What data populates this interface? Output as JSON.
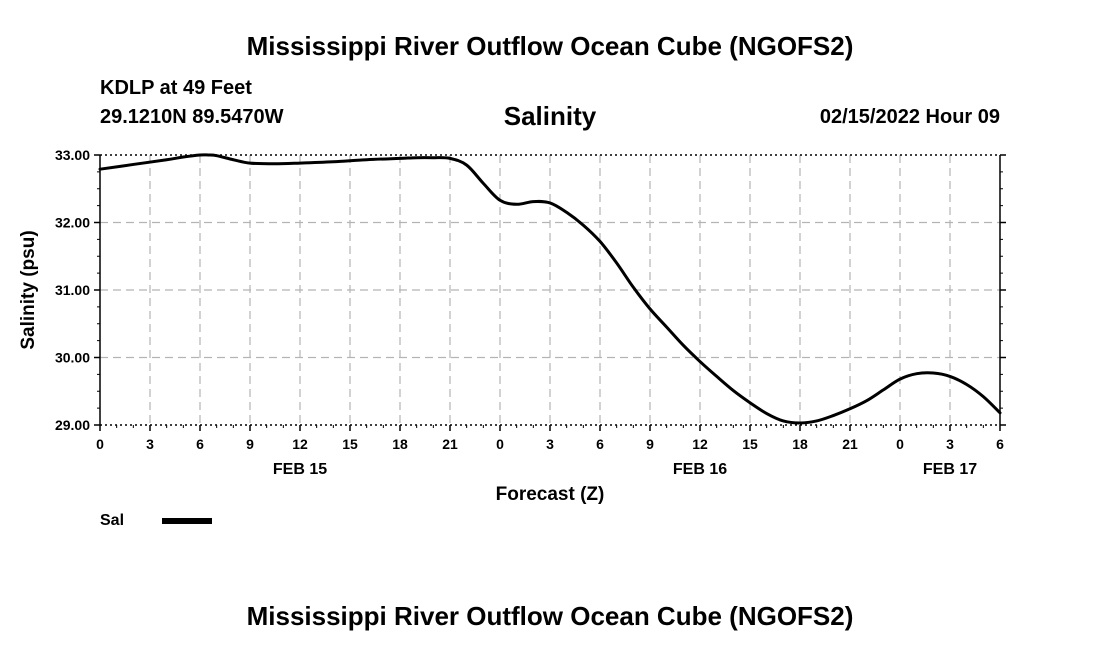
{
  "header": {
    "title": "Mississippi River Outflow Ocean Cube (NGOFS2)",
    "station": "KDLP at 49 Feet",
    "coords": "29.1210N  89.5470W",
    "chart_title": "Salinity",
    "date": "02/15/2022 Hour 09"
  },
  "footer": {
    "title": "Mississippi River Outflow Ocean Cube (NGOFS2)"
  },
  "colors": {
    "line": "#000000",
    "grid": "#b4b4b4"
  },
  "chart_data": {
    "type": "line",
    "title": "Salinity",
    "xlabel": "Forecast (Z)",
    "ylabel": "Salinity (psu)",
    "ylim": [
      29.0,
      33.0
    ],
    "yticks": [
      "29.00",
      "30.00",
      "31.00",
      "32.00",
      "33.00"
    ],
    "ytick_values": [
      29,
      30,
      31,
      32,
      33
    ],
    "xlim": [
      0,
      54
    ],
    "xticks": [
      "0",
      "3",
      "6",
      "9",
      "12",
      "15",
      "18",
      "21",
      "0",
      "3",
      "6",
      "9",
      "12",
      "15",
      "18",
      "21",
      "0",
      "3",
      "6"
    ],
    "xtick_values": [
      0,
      3,
      6,
      9,
      12,
      15,
      18,
      21,
      24,
      27,
      30,
      33,
      36,
      39,
      42,
      45,
      48,
      51,
      54
    ],
    "day_labels": [
      {
        "label": "FEB 15",
        "x": 12
      },
      {
        "label": "FEB 16",
        "x": 36
      },
      {
        "label": "FEB 17",
        "x": 51
      }
    ],
    "grid": true,
    "legend": [
      {
        "name": "Sal",
        "placement": "bottom-left"
      }
    ],
    "series": [
      {
        "name": "Sal",
        "x": [
          0,
          2,
          4,
          5,
          6,
          6.5,
          7,
          8,
          9,
          10.5,
          12,
          14,
          16,
          18,
          19,
          20,
          21,
          22,
          23,
          24,
          25,
          26,
          27,
          28,
          29,
          30,
          31,
          32,
          33,
          34,
          35,
          36,
          37,
          38,
          39,
          40,
          41,
          42,
          43,
          44,
          45,
          46,
          47,
          48,
          49,
          50,
          51,
          52,
          53,
          54
        ],
        "values": [
          32.79,
          32.86,
          32.93,
          32.97,
          33.0,
          33.0,
          32.99,
          32.93,
          32.88,
          32.87,
          32.88,
          32.9,
          32.93,
          32.95,
          32.96,
          32.96,
          32.95,
          32.85,
          32.58,
          32.33,
          32.27,
          32.31,
          32.29,
          32.15,
          31.96,
          31.72,
          31.4,
          31.04,
          30.72,
          30.45,
          30.18,
          29.94,
          29.72,
          29.51,
          29.33,
          29.17,
          29.06,
          29.03,
          29.06,
          29.14,
          29.24,
          29.36,
          29.52,
          29.68,
          29.76,
          29.77,
          29.72,
          29.6,
          29.42,
          29.18
        ]
      }
    ]
  }
}
